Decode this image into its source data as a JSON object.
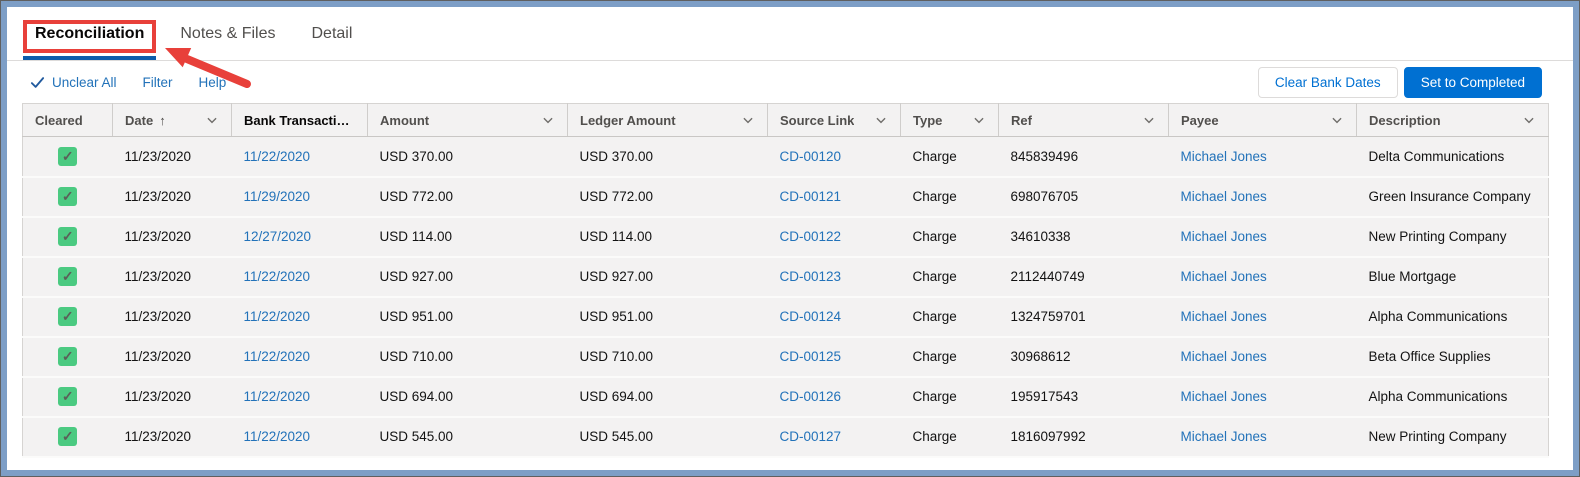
{
  "tabs": [
    {
      "label": "Reconciliation",
      "active": true
    },
    {
      "label": "Notes & Files",
      "active": false
    },
    {
      "label": "Detail",
      "active": false
    }
  ],
  "toolbar": {
    "unclear_all": "Unclear All",
    "filter": "Filter",
    "help": "Help",
    "clear_bank_dates": "Clear Bank Dates",
    "set_to_completed": "Set to Completed"
  },
  "table": {
    "columns": [
      {
        "label": "Cleared",
        "chevron": false
      },
      {
        "label": "Date",
        "sort": "asc",
        "chevron": true
      },
      {
        "label": "Bank Transactio...",
        "bold": true,
        "chevron": false
      },
      {
        "label": "Amount",
        "chevron": true
      },
      {
        "label": "Ledger Amount",
        "chevron": true
      },
      {
        "label": "Source Link",
        "chevron": true
      },
      {
        "label": "Type",
        "chevron": true
      },
      {
        "label": "Ref",
        "chevron": true
      },
      {
        "label": "Payee",
        "chevron": true
      },
      {
        "label": "Description",
        "chevron": true
      }
    ],
    "rows": [
      {
        "cleared": true,
        "date": "11/23/2020",
        "bank_date": "11/22/2020",
        "amount": "USD 370.00",
        "ledger_amount": "USD 370.00",
        "source_link": "CD-00120",
        "type": "Charge",
        "ref": "845839496",
        "payee": "Michael Jones",
        "description": "Delta Communications"
      },
      {
        "cleared": true,
        "date": "11/23/2020",
        "bank_date": "11/29/2020",
        "amount": "USD 772.00",
        "ledger_amount": "USD 772.00",
        "source_link": "CD-00121",
        "type": "Charge",
        "ref": "698076705",
        "payee": "Michael Jones",
        "description": "Green Insurance Company"
      },
      {
        "cleared": true,
        "date": "11/23/2020",
        "bank_date": "12/27/2020",
        "amount": "USD 114.00",
        "ledger_amount": "USD 114.00",
        "source_link": "CD-00122",
        "type": "Charge",
        "ref": "34610338",
        "payee": "Michael Jones",
        "description": "New Printing Company"
      },
      {
        "cleared": true,
        "date": "11/23/2020",
        "bank_date": "11/22/2020",
        "amount": "USD 927.00",
        "ledger_amount": "USD 927.00",
        "source_link": "CD-00123",
        "type": "Charge",
        "ref": "2112440749",
        "payee": "Michael Jones",
        "description": "Blue Mortgage"
      },
      {
        "cleared": true,
        "date": "11/23/2020",
        "bank_date": "11/22/2020",
        "amount": "USD 951.00",
        "ledger_amount": "USD 951.00",
        "source_link": "CD-00124",
        "type": "Charge",
        "ref": "1324759701",
        "payee": "Michael Jones",
        "description": "Alpha Communications"
      },
      {
        "cleared": true,
        "date": "11/23/2020",
        "bank_date": "11/22/2020",
        "amount": "USD 710.00",
        "ledger_amount": "USD 710.00",
        "source_link": "CD-00125",
        "type": "Charge",
        "ref": "30968612",
        "payee": "Michael Jones",
        "description": "Beta Office Supplies"
      },
      {
        "cleared": true,
        "date": "11/23/2020",
        "bank_date": "11/22/2020",
        "amount": "USD 694.00",
        "ledger_amount": "USD 694.00",
        "source_link": "CD-00126",
        "type": "Charge",
        "ref": "195917543",
        "payee": "Michael Jones",
        "description": "Alpha Communications"
      },
      {
        "cleared": true,
        "date": "11/23/2020",
        "bank_date": "11/22/2020",
        "amount": "USD 545.00",
        "ledger_amount": "USD 545.00",
        "source_link": "CD-00127",
        "type": "Charge",
        "ref": "1816097992",
        "payee": "Michael Jones",
        "description": "New Printing Company"
      }
    ]
  },
  "colors": {
    "accent_blue": "#0070d2",
    "tab_underline_blue": "#0b5cab",
    "link_blue": "#2272b9",
    "cleared_green": "#4bca81",
    "annotation_red": "#e8403a",
    "frame_blue": "#7d9ec6"
  }
}
